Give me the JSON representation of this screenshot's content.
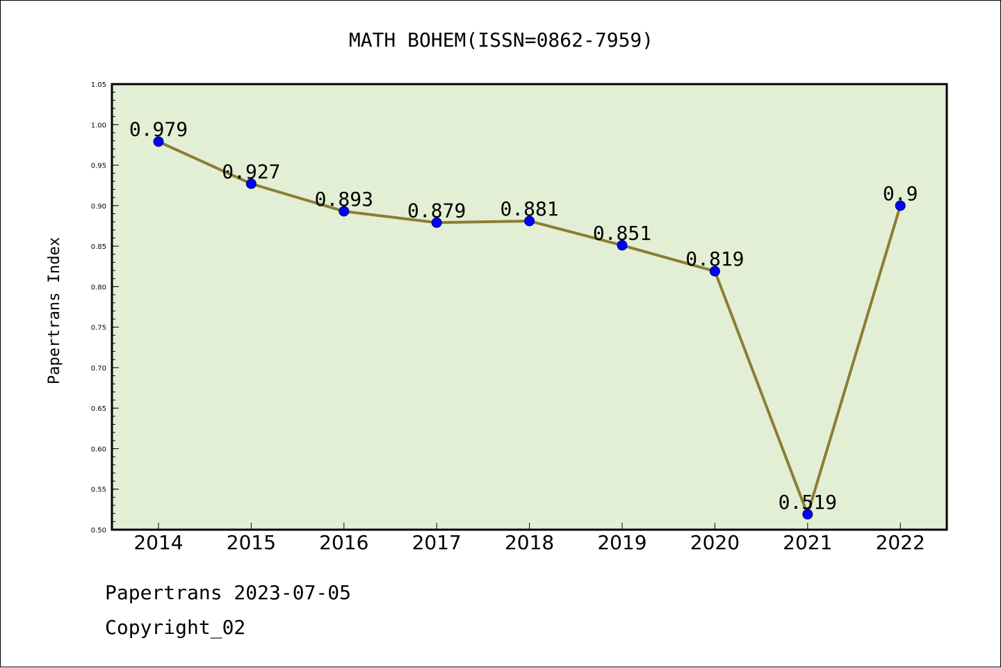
{
  "chart_data": {
    "type": "line",
    "title": "MATH BOHEM(ISSN=0862-7959)",
    "xlabel": "",
    "ylabel": "Papertrans Index",
    "categories": [
      "2014",
      "2015",
      "2016",
      "2017",
      "2018",
      "2019",
      "2020",
      "2021",
      "2022"
    ],
    "values": [
      0.979,
      0.927,
      0.893,
      0.879,
      0.881,
      0.851,
      0.819,
      0.519,
      0.9
    ],
    "data_labels": [
      "0.979",
      "0.927",
      "0.893",
      "0.879",
      "0.881",
      "0.851",
      "0.819",
      "0.519",
      "0.9"
    ],
    "ylim": [
      0.5,
      1.05
    ],
    "yticks": [
      "0.50",
      "0.55",
      "0.60",
      "0.65",
      "0.70",
      "0.75",
      "0.80",
      "0.85",
      "0.90",
      "0.95",
      "1.00",
      "1.05"
    ],
    "grid": false,
    "colors": {
      "plot_background": "#e2efd5",
      "line": "#8b7d35",
      "marker": "#0000ff"
    }
  },
  "footer": {
    "line1": "Papertrans 2023-07-05",
    "line2": "Copyright_02"
  }
}
